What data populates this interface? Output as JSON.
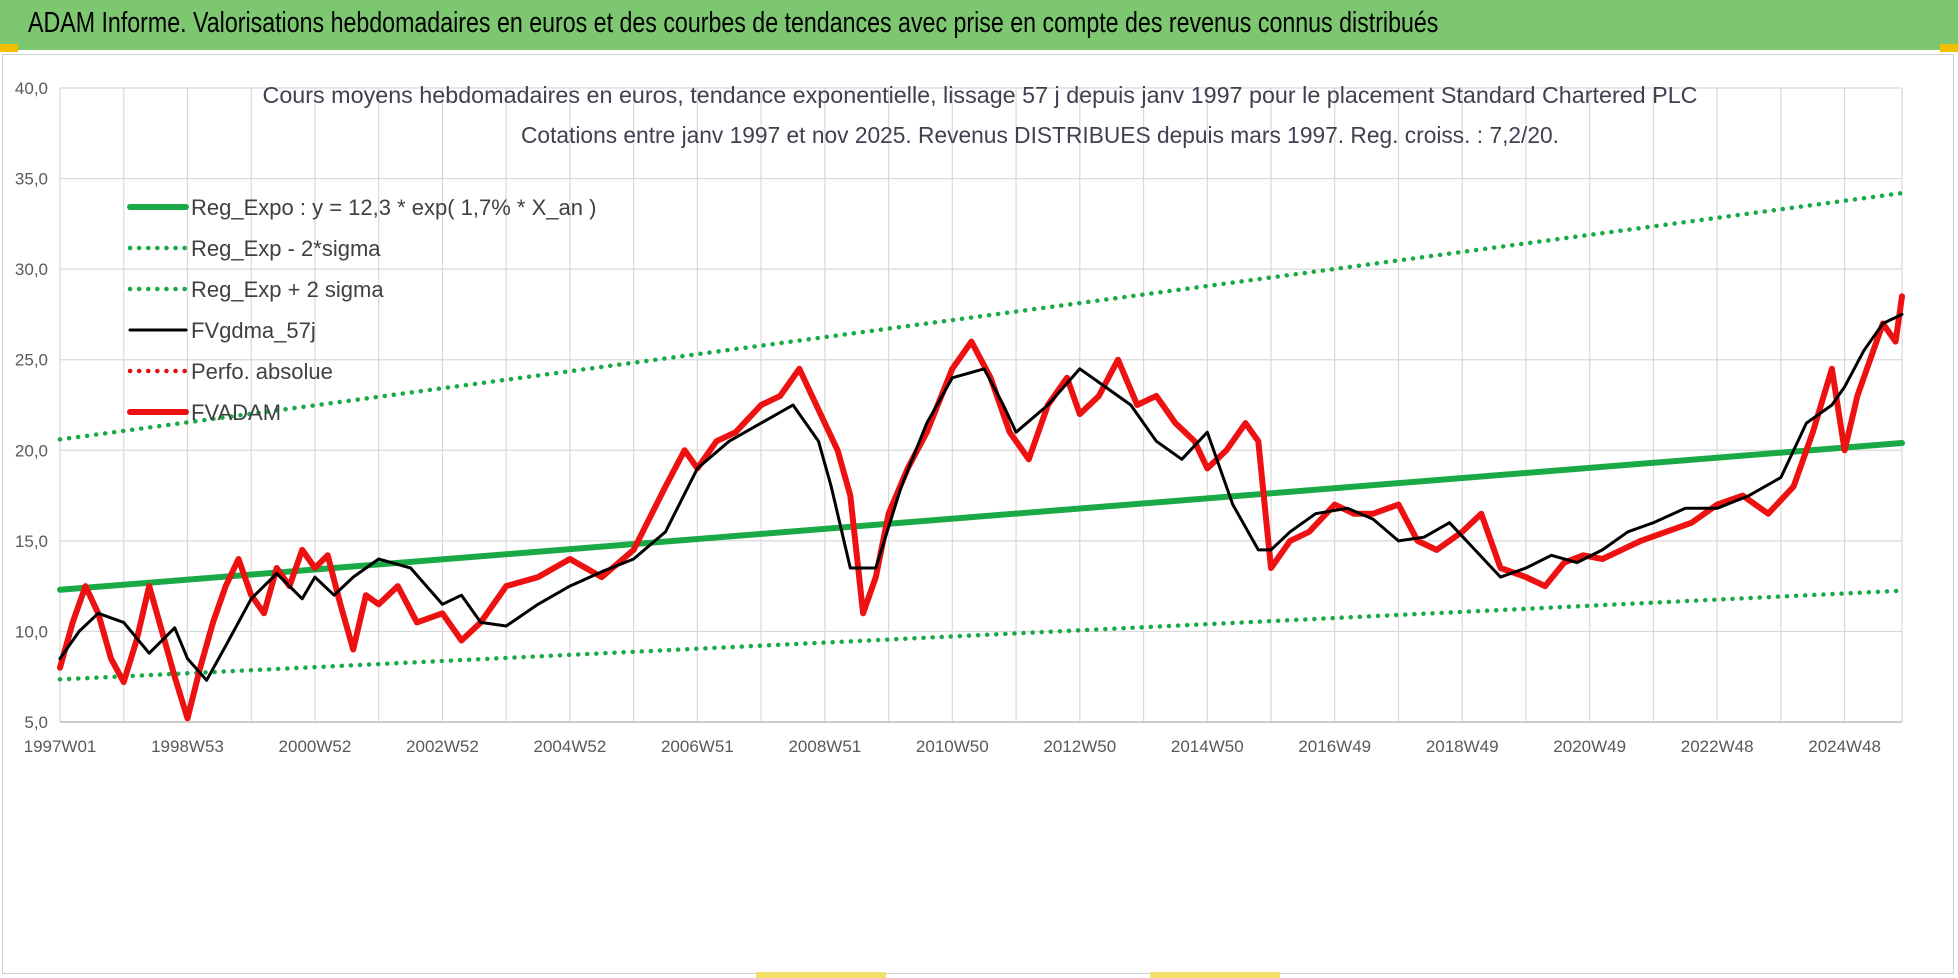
{
  "banner": {
    "title": "ADAM Informe. Valorisations hebdomadaires en euros et des courbes de tendances avec prise en compte des revenus connus distribués"
  },
  "colors": {
    "banner": "#7dc770",
    "reg_expo": "#1aaa45",
    "sigma": "#1aaa45",
    "fvgdma": "#000000",
    "perfo": "#e01010",
    "fvadam": "#ee1111",
    "grid": "#d9d9d9"
  },
  "chart_data": {
    "type": "line",
    "title": "Cours moyens hebdomadaires en euros, tendance exponentielle, lissage 57 j depuis janv 1997 pour le placement Standard Chartered PLC",
    "subtitle": "Cotations entre janv 1997 et nov 2025. Revenus DISTRIBUES depuis mars 1997. Reg. croiss. : 7,2/20.",
    "xlabel": "",
    "ylabel": "",
    "ylim": [
      5,
      40
    ],
    "xlim": [
      1997.0,
      2025.9
    ],
    "grid": true,
    "legend_position": "top-left",
    "y_ticks": [
      "5,0",
      "10,0",
      "15,0",
      "20,0",
      "25,0",
      "30,0",
      "35,0",
      "40,0"
    ],
    "x_ticks": [
      {
        "label": "1997W01",
        "x": 1997.0
      },
      {
        "label": "1998W53",
        "x": 1999.0
      },
      {
        "label": "2000W52",
        "x": 2001.0
      },
      {
        "label": "2002W52",
        "x": 2003.0
      },
      {
        "label": "2004W52",
        "x": 2005.0
      },
      {
        "label": "2006W51",
        "x": 2007.0
      },
      {
        "label": "2008W51",
        "x": 2009.0
      },
      {
        "label": "2010W50",
        "x": 2011.0
      },
      {
        "label": "2012W50",
        "x": 2013.0
      },
      {
        "label": "2014W50",
        "x": 2015.0
      },
      {
        "label": "2016W49",
        "x": 2017.0
      },
      {
        "label": "2018W49",
        "x": 2019.0
      },
      {
        "label": "2020W49",
        "x": 2021.0
      },
      {
        "label": "2022W48",
        "x": 2023.0
      },
      {
        "label": "2024W48",
        "x": 2025.0
      }
    ],
    "series": [
      {
        "name": "Reg_Expo : y = 12,3 * exp( 1,7% *  X_an )",
        "style": "solid-thick",
        "color": "#1aaa45",
        "x": [
          1997.0,
          2025.9
        ],
        "y": [
          12.3,
          20.4
        ]
      },
      {
        "name": "Reg_Exp - 2*sigma",
        "style": "dotted",
        "color": "#1aaa45",
        "x": [
          1997.0,
          2025.9
        ],
        "y": [
          7.35,
          12.25
        ]
      },
      {
        "name": "Reg_Exp + 2 sigma",
        "style": "dotted",
        "color": "#1aaa45",
        "x": [
          1997.0,
          2025.9
        ],
        "y": [
          20.6,
          34.2
        ]
      },
      {
        "name": "FVgdma_57j",
        "style": "solid",
        "color": "#000000",
        "x": [
          1997.0,
          1997.3,
          1997.6,
          1998.0,
          1998.4,
          1998.8,
          1999.0,
          1999.3,
          1999.6,
          2000.0,
          2000.4,
          2000.8,
          2001.0,
          2001.3,
          2001.6,
          2002.0,
          2002.5,
          2003.0,
          2003.3,
          2003.6,
          2004.0,
          2004.5,
          2005.0,
          2005.5,
          2006.0,
          2006.5,
          2007.0,
          2007.5,
          2008.0,
          2008.5,
          2008.9,
          2009.1,
          2009.4,
          2009.8,
          2010.2,
          2010.6,
          2011.0,
          2011.5,
          2011.8,
          2012.0,
          2012.5,
          2013.0,
          2013.4,
          2013.8,
          2014.2,
          2014.6,
          2015.0,
          2015.4,
          2015.8,
          2016.0,
          2016.3,
          2016.7,
          2017.2,
          2017.6,
          2018.0,
          2018.4,
          2018.8,
          2019.2,
          2019.6,
          2020.0,
          2020.4,
          2020.8,
          2021.2,
          2021.6,
          2022.0,
          2022.5,
          2023.0,
          2023.5,
          2024.0,
          2024.4,
          2024.8,
          2025.0,
          2025.3,
          2025.6,
          2025.9
        ],
        "y": [
          8.5,
          10.0,
          11.0,
          10.5,
          8.8,
          10.2,
          8.5,
          7.3,
          9.2,
          11.8,
          13.2,
          11.8,
          13.0,
          12.0,
          13.0,
          14.0,
          13.5,
          11.5,
          12.0,
          10.5,
          10.3,
          11.5,
          12.5,
          13.3,
          14.0,
          15.5,
          19.0,
          20.5,
          21.5,
          22.5,
          20.5,
          18.0,
          13.5,
          13.5,
          18.0,
          21.5,
          24.0,
          24.5,
          22.5,
          21.0,
          22.5,
          24.5,
          23.5,
          22.5,
          20.5,
          19.5,
          21.0,
          17.0,
          14.5,
          14.5,
          15.5,
          16.5,
          16.8,
          16.2,
          15.0,
          15.2,
          16.0,
          14.5,
          13.0,
          13.5,
          14.2,
          13.8,
          14.5,
          15.5,
          16.0,
          16.8,
          16.8,
          17.5,
          18.5,
          21.5,
          22.5,
          23.5,
          25.5,
          27.0,
          27.5
        ]
      },
      {
        "name": "Perfo. absolue",
        "style": "dotted",
        "color": "#e01010",
        "x": [
          1997.0,
          2025.9
        ],
        "y": [
          null,
          null
        ]
      },
      {
        "name": "FVADAM",
        "style": "solid-thick",
        "color": "#ee1111",
        "x": [
          1997.0,
          1997.2,
          1997.4,
          1997.6,
          1997.8,
          1998.0,
          1998.2,
          1998.4,
          1998.6,
          1998.8,
          1999.0,
          1999.2,
          1999.4,
          1999.6,
          1999.8,
          2000.0,
          2000.2,
          2000.4,
          2000.6,
          2000.8,
          2001.0,
          2001.2,
          2001.4,
          2001.6,
          2001.8,
          2002.0,
          2002.3,
          2002.6,
          2003.0,
          2003.3,
          2003.6,
          2004.0,
          2004.5,
          2005.0,
          2005.5,
          2006.0,
          2006.5,
          2006.8,
          2007.0,
          2007.3,
          2007.6,
          2008.0,
          2008.3,
          2008.6,
          2009.0,
          2009.2,
          2009.4,
          2009.6,
          2009.8,
          2010.0,
          2010.3,
          2010.6,
          2011.0,
          2011.3,
          2011.6,
          2011.9,
          2012.2,
          2012.5,
          2012.8,
          2013.0,
          2013.3,
          2013.6,
          2013.9,
          2014.2,
          2014.5,
          2014.8,
          2015.0,
          2015.3,
          2015.6,
          2015.8,
          2016.0,
          2016.3,
          2016.6,
          2017.0,
          2017.3,
          2017.6,
          2018.0,
          2018.3,
          2018.6,
          2019.0,
          2019.3,
          2019.6,
          2020.0,
          2020.3,
          2020.6,
          2020.9,
          2021.2,
          2021.5,
          2021.8,
          2022.2,
          2022.6,
          2023.0,
          2023.4,
          2023.8,
          2024.2,
          2024.5,
          2024.8,
          2025.0,
          2025.2,
          2025.4,
          2025.6,
          2025.8,
          2025.9
        ],
        "y": [
          8.0,
          10.5,
          12.5,
          11.0,
          8.5,
          7.2,
          9.5,
          12.5,
          10.0,
          7.5,
          5.2,
          8.0,
          10.5,
          12.5,
          14.0,
          12.0,
          11.0,
          13.5,
          12.5,
          14.5,
          13.5,
          14.2,
          11.5,
          9.0,
          12.0,
          11.5,
          12.5,
          10.5,
          11.0,
          9.5,
          10.5,
          12.5,
          13.0,
          14.0,
          13.0,
          14.5,
          18.0,
          20.0,
          19.0,
          20.5,
          21.0,
          22.5,
          23.0,
          24.5,
          21.5,
          20.0,
          17.5,
          11.0,
          13.0,
          16.5,
          19.0,
          21.0,
          24.5,
          26.0,
          24.0,
          21.0,
          19.5,
          22.5,
          24.0,
          22.0,
          23.0,
          25.0,
          22.5,
          23.0,
          21.5,
          20.5,
          19.0,
          20.0,
          21.5,
          20.5,
          13.5,
          15.0,
          15.5,
          17.0,
          16.5,
          16.5,
          17.0,
          15.0,
          14.5,
          15.5,
          16.5,
          13.5,
          13.0,
          12.5,
          13.8,
          14.2,
          14.0,
          14.5,
          15.0,
          15.5,
          16.0,
          17.0,
          17.5,
          16.5,
          18.0,
          21.0,
          24.5,
          20.0,
          23.0,
          25.0,
          27.0,
          26.0,
          28.5
        ]
      }
    ]
  }
}
